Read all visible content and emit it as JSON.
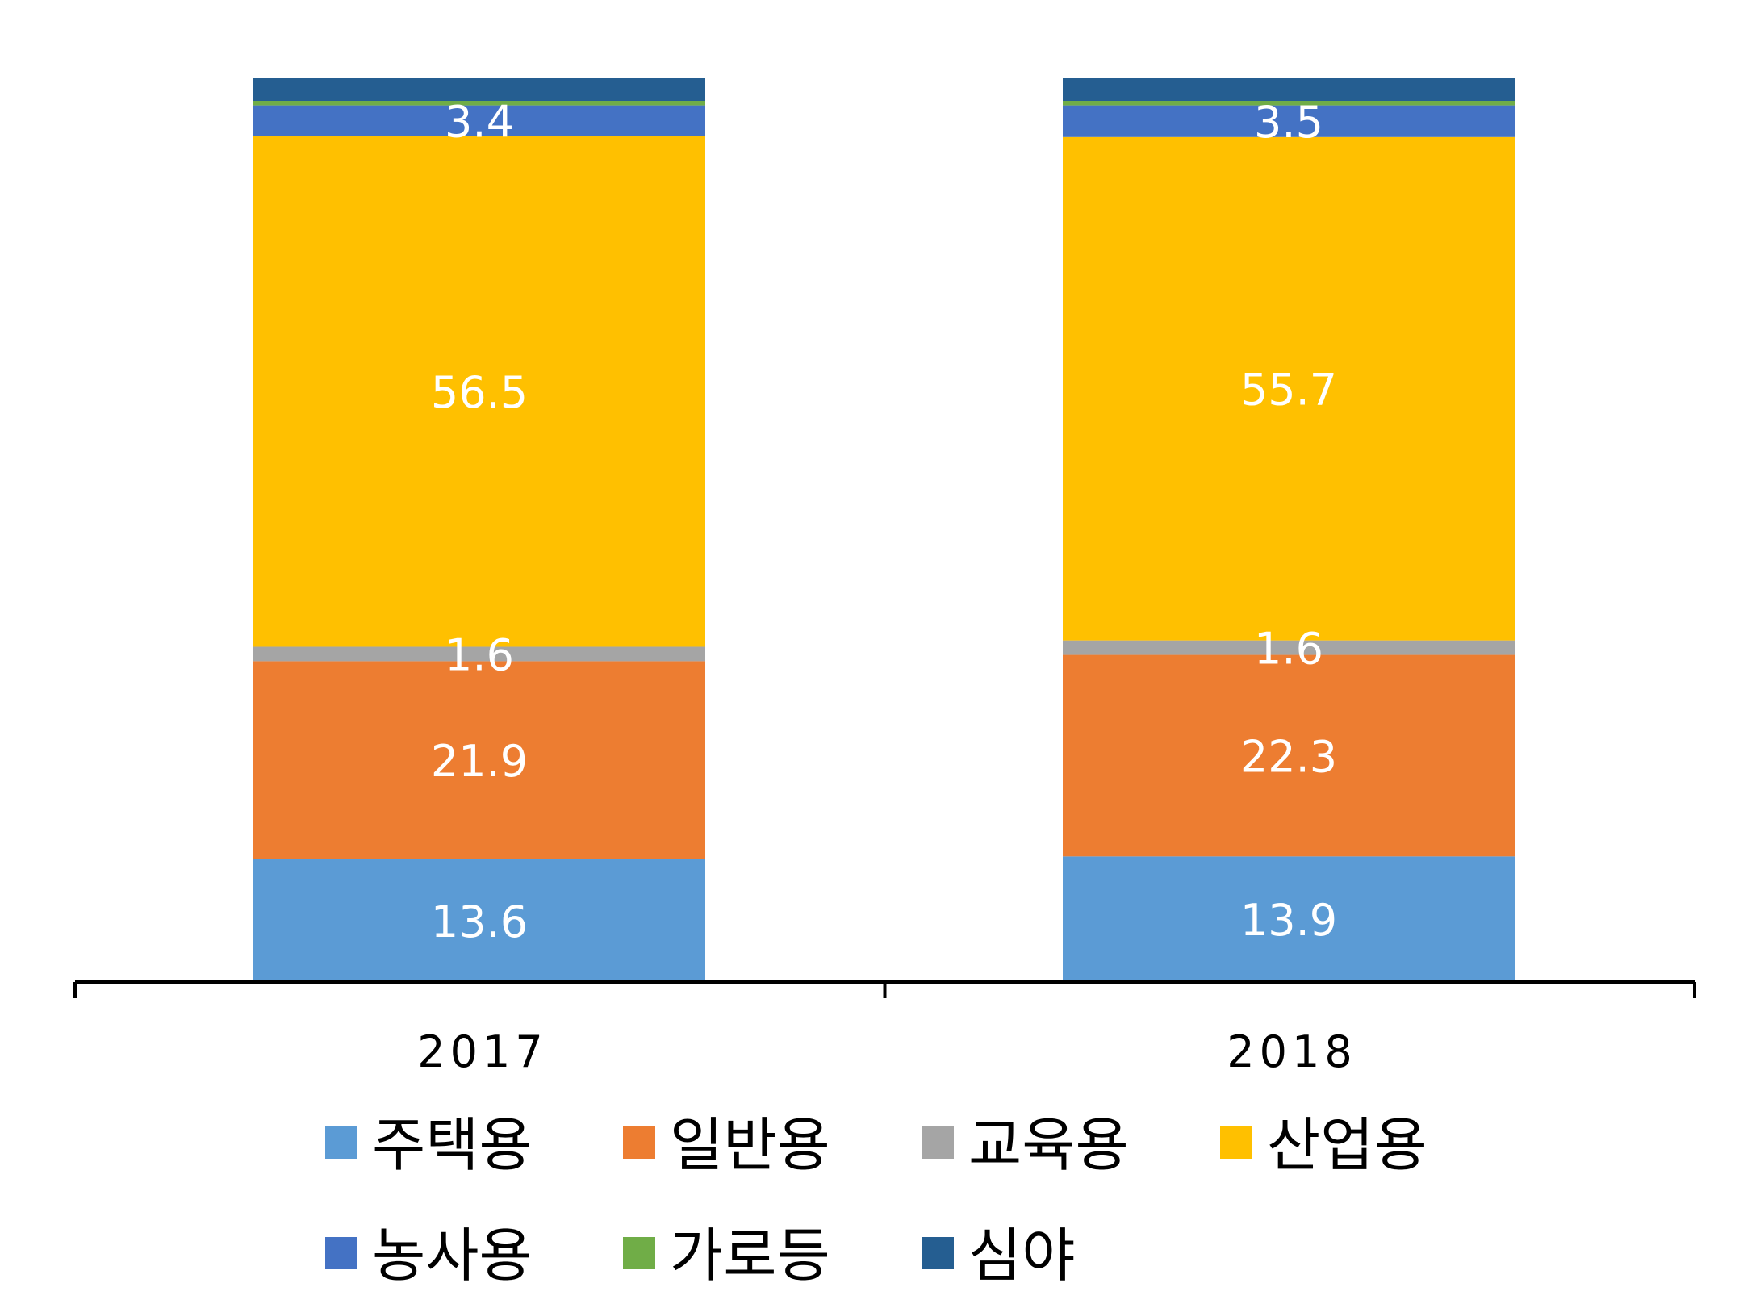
{
  "chart_data": {
    "type": "bar",
    "stacked": true,
    "categories": [
      "2017",
      "2018"
    ],
    "ylim": [
      0,
      100
    ],
    "legend_position": "bottom",
    "grid": false,
    "series": [
      {
        "name": "주택용",
        "color": "#5B9BD5",
        "values": [
          13.6,
          13.9
        ],
        "labels": [
          "13.6",
          "13.9"
        ]
      },
      {
        "name": "일반용",
        "color": "#ED7D31",
        "values": [
          21.9,
          22.3
        ],
        "labels": [
          "21.9",
          "22.3"
        ]
      },
      {
        "name": "교육용",
        "color": "#A5A5A5",
        "values": [
          1.6,
          1.6
        ],
        "labels": [
          "1.6",
          "1.6"
        ]
      },
      {
        "name": "산업용",
        "color": "#FFC000",
        "values": [
          56.5,
          55.7
        ],
        "labels": [
          "56.5",
          "55.7"
        ]
      },
      {
        "name": "농사용",
        "color": "#4472C4",
        "values": [
          3.4,
          3.5
        ],
        "labels": [
          "3.4",
          "3.5"
        ]
      },
      {
        "name": "가로등",
        "color": "#70AD47",
        "values": [
          0.5,
          0.5
        ],
        "labels": [
          "",
          ""
        ]
      },
      {
        "name": "심야",
        "color": "#255E91",
        "values": [
          2.5,
          2.5
        ],
        "labels": [
          "",
          ""
        ]
      }
    ]
  }
}
